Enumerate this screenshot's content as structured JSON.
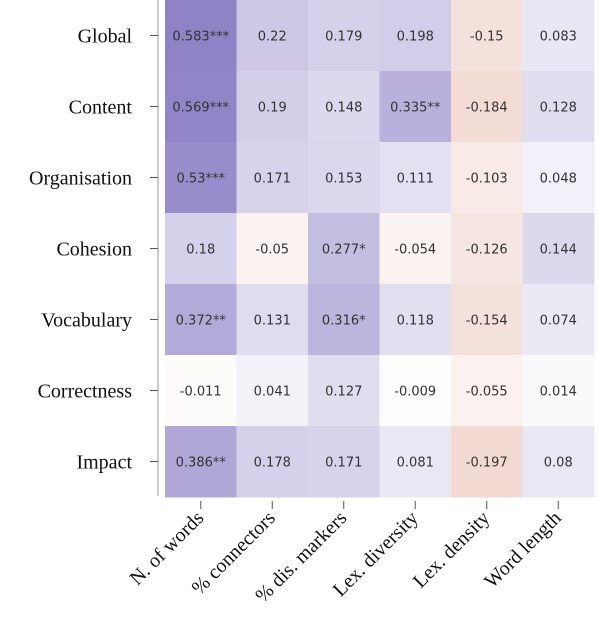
{
  "chart_data": {
    "type": "heatmap",
    "title": "",
    "xlabel": "",
    "ylabel": "",
    "rows": [
      "Global",
      "Content",
      "Organisation",
      "Cohesion",
      "Vocabulary",
      "Correctness",
      "Impact"
    ],
    "columns": [
      "N. of words",
      "% connectors",
      "% dis. markers",
      "Lex. diversity",
      "Lex. density",
      "Word length"
    ],
    "values": [
      [
        0.583,
        0.22,
        0.179,
        0.198,
        -0.15,
        0.083
      ],
      [
        0.569,
        0.19,
        0.148,
        0.335,
        -0.184,
        0.128
      ],
      [
        0.53,
        0.171,
        0.153,
        0.111,
        -0.103,
        0.048
      ],
      [
        0.18,
        -0.05,
        0.277,
        -0.054,
        -0.126,
        0.144
      ],
      [
        0.372,
        0.131,
        0.316,
        0.118,
        -0.154,
        0.074
      ],
      [
        -0.011,
        0.041,
        0.127,
        -0.009,
        -0.055,
        0.014
      ],
      [
        0.386,
        0.178,
        0.171,
        0.081,
        -0.197,
        0.08
      ]
    ],
    "cell_labels": [
      [
        "0.583***",
        "0.22",
        "0.179",
        "0.198",
        "-0.15",
        "0.083"
      ],
      [
        "0.569***",
        "0.19",
        "0.148",
        "0.335**",
        "-0.184",
        "0.128"
      ],
      [
        "0.53***",
        "0.171",
        "0.153",
        "0.111",
        "-0.103",
        "0.048"
      ],
      [
        "0.18",
        "-0.05",
        "0.277*",
        "-0.054",
        "-0.126",
        "0.144"
      ],
      [
        "0.372**",
        "0.131",
        "0.316*",
        "0.118",
        "-0.154",
        "0.074"
      ],
      [
        "-0.011",
        "0.041",
        "0.127",
        "-0.009",
        "-0.055",
        "0.014"
      ],
      [
        "0.386**",
        "0.178",
        "0.171",
        "0.081",
        "-0.197",
        "0.08"
      ]
    ],
    "color_scale": {
      "positive": "#8c7fc4",
      "negative": "#de9f8e",
      "neutral": "#ffffff",
      "max_abs": 0.6
    },
    "grid": false,
    "legend": "none"
  }
}
